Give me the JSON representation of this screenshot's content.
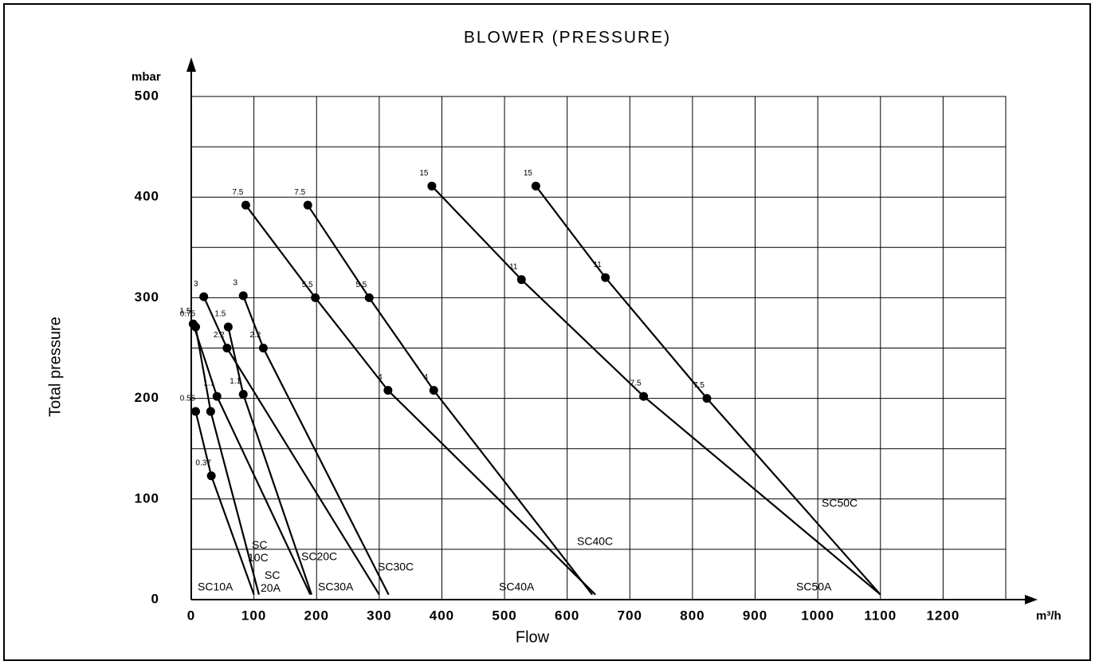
{
  "chart_data": {
    "type": "line",
    "title": "BLOWER (PRESSURE)",
    "x_label": "Flow",
    "y_label": "Total pressure",
    "x_unit": "m³/h",
    "y_unit": "mbar",
    "xlim": [
      0,
      1300
    ],
    "ylim": [
      0,
      500
    ],
    "xticks": [
      0,
      100,
      200,
      300,
      400,
      500,
      600,
      700,
      800,
      900,
      1000,
      1100,
      1200
    ],
    "yticks": [
      0,
      100,
      200,
      300,
      400,
      500
    ],
    "yminor": [
      50,
      150,
      250,
      350,
      450
    ],
    "grid": true,
    "color": "#000000",
    "series": [
      {
        "name": "SC10A",
        "x": [
          7,
          32,
          100
        ],
        "y": [
          187,
          123,
          5
        ],
        "point_labels": [
          "0.55",
          "0.37",
          null
        ]
      },
      {
        "name": "SC 10C",
        "x": [
          7,
          31,
          108
        ],
        "y": [
          271,
          187,
          5
        ],
        "point_labels": [
          "0.75",
          null,
          null
        ]
      },
      {
        "name": "SC 20A",
        "x": [
          3,
          41,
          190
        ],
        "y": [
          274,
          202,
          5
        ],
        "point_labels": [
          "1.5",
          "1.1",
          null
        ]
      },
      {
        "name": "SC20C",
        "x": [
          59,
          83,
          192
        ],
        "y": [
          271,
          204,
          5
        ],
        "point_labels": [
          "1.5",
          "1.1",
          null
        ]
      },
      {
        "name": "SC30A",
        "x": [
          20,
          57,
          300
        ],
        "y": [
          301,
          250,
          5
        ],
        "point_labels": [
          "3",
          "2.2",
          null
        ]
      },
      {
        "name": "SC30C",
        "x": [
          83,
          115,
          315
        ],
        "y": [
          302,
          250,
          5
        ],
        "point_labels": [
          "3",
          "2.2",
          null
        ]
      },
      {
        "name": "SC40A",
        "x": [
          87,
          198,
          314,
          645
        ],
        "y": [
          392,
          300,
          208,
          5
        ],
        "point_labels": [
          "7.5",
          "5.5",
          "4",
          null
        ]
      },
      {
        "name": "SC40C",
        "x": [
          186,
          284,
          387,
          640
        ],
        "y": [
          392,
          300,
          208,
          5
        ],
        "point_labels": [
          "7.5",
          "5.5",
          "4",
          null
        ]
      },
      {
        "name": "SC50A",
        "x": [
          384,
          527,
          722,
          1100
        ],
        "y": [
          411,
          318,
          202,
          5
        ],
        "point_labels": [
          "15",
          "11",
          "7.5",
          null
        ]
      },
      {
        "name": "SC50C",
        "x": [
          550,
          661,
          823,
          1100
        ],
        "y": [
          411,
          320,
          200,
          5
        ],
        "point_labels": [
          "15",
          "11",
          "7.5",
          null
        ]
      }
    ]
  }
}
